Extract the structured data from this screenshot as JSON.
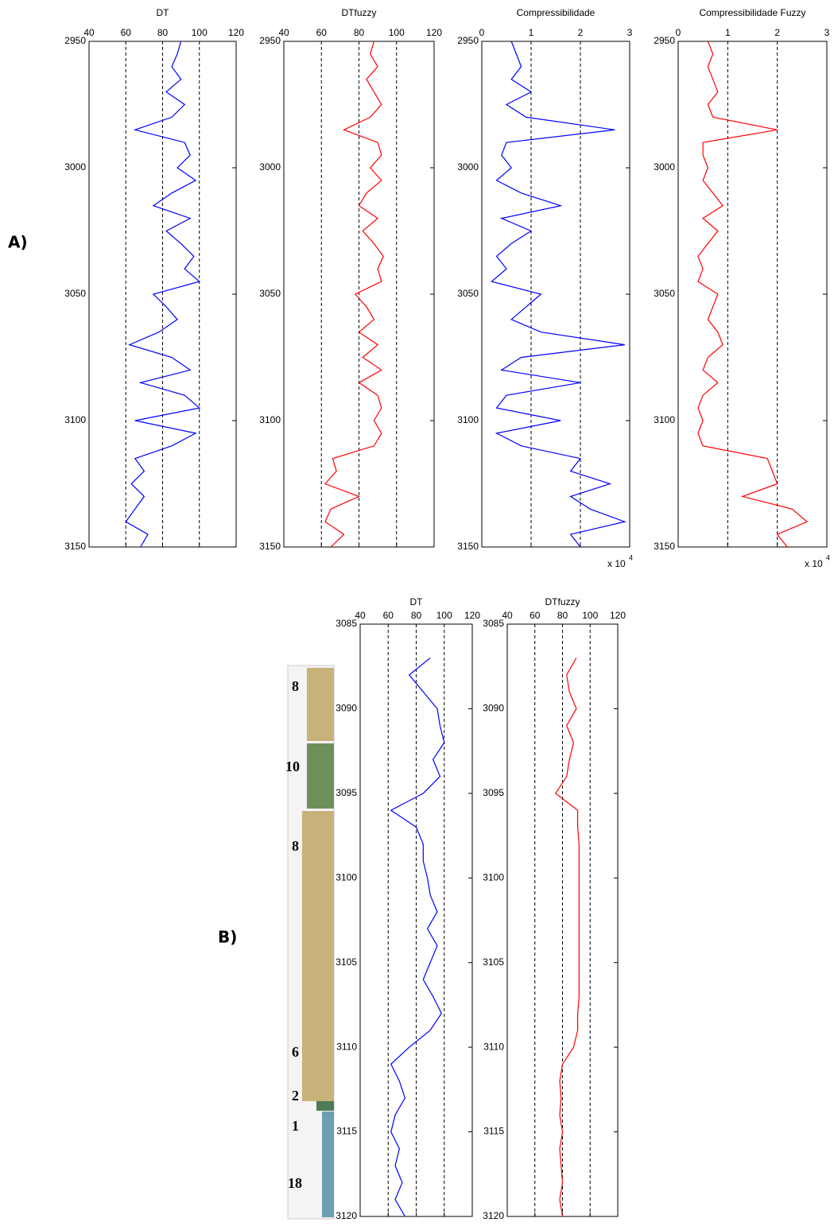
{
  "panel_labels": [
    "A)",
    "B)"
  ],
  "lithology": {
    "labels": [
      "8",
      "10",
      "8",
      "6",
      "2",
      "1",
      "18"
    ]
  },
  "chart_data": [
    {
      "type": "line",
      "title": "DT",
      "xlim": [
        40,
        120
      ],
      "xticks": [
        40,
        60,
        80,
        100,
        120
      ],
      "ylim": [
        2950,
        3150
      ],
      "yticks": [
        2950,
        3000,
        3050,
        3100,
        3150
      ],
      "grid": true,
      "y": [
        2950,
        2955,
        2960,
        2965,
        2970,
        2975,
        2980,
        2985,
        2990,
        2995,
        3000,
        3005,
        3010,
        3015,
        3020,
        3025,
        3030,
        3035,
        3040,
        3045,
        3050,
        3055,
        3060,
        3065,
        3070,
        3075,
        3080,
        3085,
        3090,
        3095,
        3100,
        3105,
        3110,
        3115,
        3120,
        3125,
        3130,
        3135,
        3140,
        3145,
        3150
      ],
      "series": [
        {
          "color": "#0000ff",
          "values": [
            90,
            88,
            85,
            90,
            82,
            92,
            85,
            65,
            92,
            95,
            88,
            98,
            85,
            75,
            95,
            82,
            90,
            97,
            92,
            100,
            75,
            82,
            88,
            78,
            62,
            85,
            95,
            68,
            92,
            100,
            65,
            98,
            85,
            65,
            70,
            63,
            70,
            65,
            60,
            72,
            68
          ]
        }
      ]
    },
    {
      "type": "line",
      "title": "DTfuzzy",
      "xlim": [
        40,
        120
      ],
      "xticks": [
        40,
        60,
        80,
        100,
        120
      ],
      "ylim": [
        2950,
        3150
      ],
      "yticks": [
        2950,
        3000,
        3050,
        3100,
        3150
      ],
      "grid": true,
      "y": [
        2950,
        2955,
        2960,
        2965,
        2970,
        2975,
        2980,
        2985,
        2990,
        2995,
        3000,
        3005,
        3010,
        3015,
        3020,
        3025,
        3030,
        3035,
        3040,
        3045,
        3050,
        3055,
        3060,
        3065,
        3070,
        3075,
        3080,
        3085,
        3090,
        3095,
        3100,
        3105,
        3110,
        3115,
        3120,
        3125,
        3130,
        3135,
        3140,
        3145,
        3150
      ],
      "series": [
        {
          "color": "#ff0000",
          "values": [
            88,
            86,
            90,
            84,
            88,
            92,
            86,
            72,
            90,
            92,
            86,
            92,
            84,
            80,
            90,
            82,
            88,
            93,
            90,
            92,
            78,
            84,
            88,
            80,
            90,
            82,
            92,
            80,
            90,
            92,
            88,
            92,
            88,
            66,
            68,
            62,
            80,
            65,
            62,
            72,
            65
          ]
        }
      ]
    },
    {
      "type": "line",
      "title": "Compressibilidade",
      "xlim": [
        0,
        3
      ],
      "xticks": [
        0,
        1,
        2,
        3
      ],
      "ylim": [
        2950,
        3150
      ],
      "yticks": [
        2950,
        3000,
        3050,
        3100,
        3150
      ],
      "grid": true,
      "x_multiplier": {
        "base": "x 10",
        "exponent": "4"
      },
      "y": [
        2950,
        2955,
        2960,
        2965,
        2970,
        2975,
        2980,
        2985,
        2990,
        2995,
        3000,
        3005,
        3010,
        3015,
        3020,
        3025,
        3030,
        3035,
        3040,
        3045,
        3050,
        3055,
        3060,
        3065,
        3070,
        3075,
        3080,
        3085,
        3090,
        3095,
        3100,
        3105,
        3110,
        3115,
        3120,
        3125,
        3130,
        3135,
        3140,
        3145,
        3150
      ],
      "series": [
        {
          "color": "#0000ff",
          "values": [
            0.6,
            0.7,
            0.8,
            0.6,
            1.0,
            0.5,
            0.9,
            2.7,
            0.5,
            0.4,
            0.6,
            0.3,
            0.8,
            1.6,
            0.4,
            1.0,
            0.6,
            0.3,
            0.5,
            0.2,
            1.2,
            0.9,
            0.6,
            1.2,
            2.9,
            0.8,
            0.4,
            2.0,
            0.5,
            0.3,
            1.6,
            0.3,
            0.8,
            2.0,
            1.8,
            2.6,
            1.8,
            2.2,
            2.9,
            1.8,
            2.0
          ]
        }
      ]
    },
    {
      "type": "line",
      "title": "Compressibilidade Fuzzy",
      "xlim": [
        0,
        3
      ],
      "xticks": [
        0,
        1,
        2,
        3
      ],
      "ylim": [
        2950,
        3150
      ],
      "yticks": [
        2950,
        3000,
        3050,
        3100,
        3150
      ],
      "grid": true,
      "x_multiplier": {
        "base": "x 10",
        "exponent": "4"
      },
      "y": [
        2950,
        2955,
        2960,
        2965,
        2970,
        2975,
        2980,
        2985,
        2990,
        2995,
        3000,
        3005,
        3010,
        3015,
        3020,
        3025,
        3030,
        3035,
        3040,
        3045,
        3050,
        3055,
        3060,
        3065,
        3070,
        3075,
        3080,
        3085,
        3090,
        3095,
        3100,
        3105,
        3110,
        3115,
        3120,
        3125,
        3130,
        3135,
        3140,
        3145,
        3150
      ],
      "series": [
        {
          "color": "#ff0000",
          "values": [
            0.6,
            0.7,
            0.6,
            0.7,
            0.8,
            0.6,
            0.7,
            2.0,
            0.5,
            0.5,
            0.6,
            0.5,
            0.7,
            0.9,
            0.5,
            0.8,
            0.6,
            0.4,
            0.5,
            0.4,
            0.8,
            0.7,
            0.6,
            0.8,
            0.9,
            0.6,
            0.5,
            0.8,
            0.5,
            0.4,
            0.5,
            0.4,
            0.5,
            1.8,
            1.9,
            2.0,
            1.3,
            2.3,
            2.6,
            2.0,
            2.2
          ]
        }
      ]
    },
    {
      "type": "line",
      "title": "DT",
      "xlim": [
        40,
        120
      ],
      "xticks": [
        40,
        60,
        80,
        100,
        120
      ],
      "ylim": [
        3085,
        3120
      ],
      "yticks": [
        3085,
        3090,
        3095,
        3100,
        3105,
        3110,
        3115,
        3120
      ],
      "grid": true,
      "y": [
        3087,
        3088,
        3089,
        3090,
        3091,
        3092,
        3093,
        3094,
        3095,
        3096,
        3097,
        3098,
        3099,
        3100,
        3101,
        3102,
        3103,
        3104,
        3105,
        3106,
        3107,
        3108,
        3109,
        3110,
        3111,
        3112,
        3113,
        3114,
        3115,
        3116,
        3117,
        3118,
        3119,
        3120
      ],
      "series": [
        {
          "color": "#0000ff",
          "values": [
            90,
            75,
            85,
            95,
            97,
            100,
            92,
            97,
            85,
            62,
            80,
            85,
            85,
            88,
            90,
            95,
            88,
            95,
            90,
            85,
            92,
            98,
            90,
            75,
            62,
            68,
            72,
            65,
            62,
            68,
            65,
            70,
            65,
            72
          ]
        }
      ]
    },
    {
      "type": "line",
      "title": "DTfuzzy",
      "xlim": [
        40,
        120
      ],
      "xticks": [
        40,
        60,
        80,
        100,
        120
      ],
      "ylim": [
        3085,
        3120
      ],
      "yticks": [
        3085,
        3090,
        3095,
        3100,
        3105,
        3110,
        3115,
        3120
      ],
      "grid": true,
      "y": [
        3087,
        3088,
        3089,
        3090,
        3091,
        3092,
        3093,
        3094,
        3095,
        3096,
        3097,
        3098,
        3099,
        3100,
        3101,
        3102,
        3103,
        3104,
        3105,
        3106,
        3107,
        3108,
        3109,
        3110,
        3111,
        3112,
        3113,
        3114,
        3115,
        3116,
        3117,
        3118,
        3119,
        3120
      ],
      "series": [
        {
          "color": "#ff0000",
          "values": [
            90,
            83,
            85,
            90,
            83,
            88,
            85,
            83,
            75,
            91,
            91,
            92,
            92,
            92,
            92,
            92,
            92,
            92,
            92,
            92,
            92,
            91,
            91,
            88,
            80,
            78,
            79,
            78,
            80,
            78,
            79,
            80,
            78,
            80
          ]
        }
      ]
    }
  ]
}
